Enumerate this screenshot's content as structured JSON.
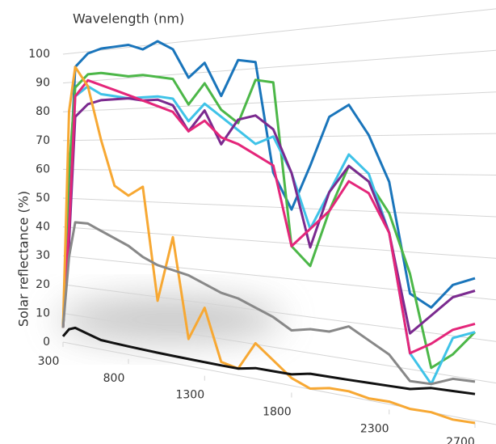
{
  "chart_data": {
    "type": "line",
    "title": "Wavelength (nm)",
    "y_label": "Solar reflectance (%)",
    "x": [
      300,
      350,
      400,
      500,
      600,
      700,
      800,
      900,
      1000,
      1100,
      1200,
      1300,
      1400,
      1500,
      1600,
      1700,
      1800,
      1900,
      2000,
      2100,
      2200,
      2300,
      2400,
      2500,
      2600,
      2700
    ],
    "series": [
      {
        "color": "#1a75bb",
        "values": [
          5,
          50,
          95,
          99,
          100,
          100,
          100,
          98,
          100,
          97,
          88,
          92,
          82,
          92,
          91,
          60,
          50,
          62,
          75,
          78,
          70,
          58,
          30,
          27,
          33,
          35
        ]
      },
      {
        "color": "#4cb748",
        "values": [
          5,
          60,
          88,
          92,
          92,
          91,
          90,
          90,
          89,
          88,
          80,
          86,
          78,
          74,
          86,
          85,
          40,
          35,
          50,
          62,
          58,
          50,
          35,
          12,
          16,
          22
        ]
      },
      {
        "color": "#3fc3e8",
        "values": [
          5,
          40,
          85,
          88,
          85,
          84,
          83,
          83,
          83,
          82,
          75,
          80,
          76,
          72,
          68,
          70,
          60,
          45,
          55,
          65,
          60,
          45,
          15,
          8,
          20,
          22
        ]
      },
      {
        "color": "#7b2a8f",
        "values": [
          5,
          35,
          78,
          82,
          83,
          83,
          83,
          82,
          82,
          80,
          72,
          78,
          68,
          75,
          76,
          72,
          60,
          40,
          55,
          62,
          58,
          45,
          20,
          25,
          30,
          32
        ]
      },
      {
        "color": "#e4267a",
        "values": [
          5,
          40,
          85,
          90,
          88,
          86,
          84,
          82,
          80,
          78,
          72,
          75,
          70,
          68,
          65,
          62,
          40,
          45,
          50,
          58,
          55,
          45,
          15,
          18,
          22,
          24
        ]
      },
      {
        "color": "#f7a833",
        "values": [
          5,
          80,
          95,
          88,
          70,
          55,
          52,
          55,
          20,
          40,
          10,
          20,
          5,
          4,
          12,
          8,
          4,
          2,
          3,
          3,
          2,
          2,
          1,
          1,
          0,
          0
        ]
      },
      {
        "color": "#888888",
        "values": [
          5,
          30,
          42,
          42,
          40,
          38,
          36,
          33,
          31,
          30,
          29,
          27,
          25,
          24,
          22,
          20,
          17,
          18,
          18,
          20,
          17,
          14,
          8,
          8,
          10,
          10
        ]
      },
      {
        "color": "#111111",
        "values": [
          2,
          5,
          6,
          5,
          4,
          4,
          4,
          4,
          4,
          4,
          4,
          4,
          4,
          4,
          5,
          5,
          5,
          6,
          6,
          6,
          6,
          6,
          6,
          7,
          7,
          7
        ]
      }
    ],
    "xlim": [
      300,
      2700
    ],
    "xticks": [
      300,
      800,
      1300,
      1800,
      2300,
      2700
    ],
    "ylim": [
      0,
      100
    ],
    "yticks": [
      0,
      10,
      20,
      30,
      40,
      50,
      60,
      70,
      80,
      90,
      100
    ],
    "grid": true
  }
}
